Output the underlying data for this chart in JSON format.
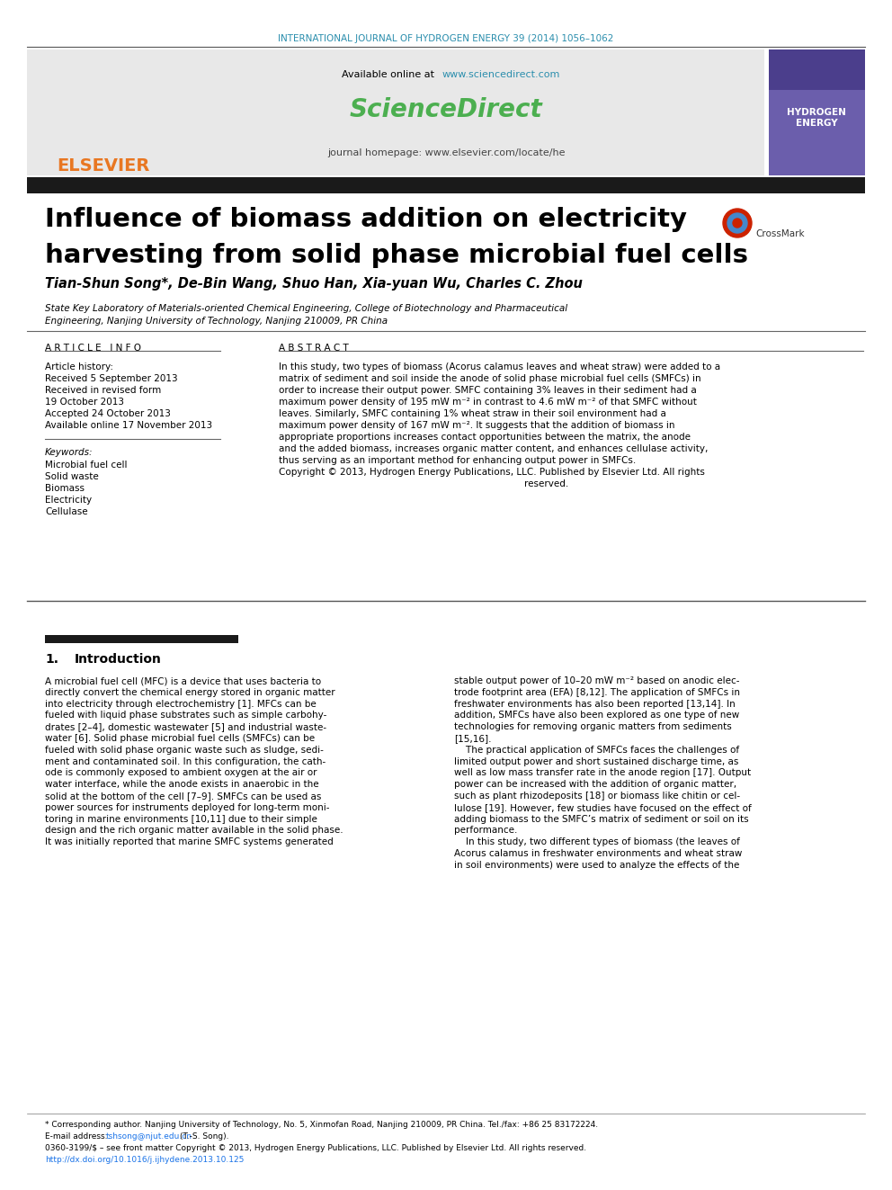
{
  "journal_header": "INTERNATIONAL JOURNAL OF HYDROGEN ENERGY 39 (2014) 1056–1062",
  "available_online": "Available online at",
  "sciencedirect_url": "www.sciencedirect.com",
  "journal_homepage": "journal homepage: www.elsevier.com/locate/he",
  "paper_title_line1": "Influence of biomass addition on electricity",
  "paper_title_line2": "harvesting from solid phase microbial fuel cells",
  "authors": "Tian-Shun Song*, De-Bin Wang, Shuo Han, Xia-yuan Wu, Charles C. Zhou",
  "affiliation_line1": "State Key Laboratory of Materials-oriented Chemical Engineering, College of Biotechnology and Pharmaceutical",
  "affiliation_line2": "Engineering, Nanjing University of Technology, Nanjing 210009, PR China",
  "article_info_header": "A R T I C L E   I N F O",
  "abstract_header": "A B S T R A C T",
  "article_history_label": "Article history:",
  "received1": "Received 5 September 2013",
  "received2": "Received in revised form",
  "received3": "19 October 2013",
  "accepted": "Accepted 24 October 2013",
  "available": "Available online 17 November 2013",
  "keywords_label": "Keywords:",
  "keywords": [
    "Microbial fuel cell",
    "Solid waste",
    "Biomass",
    "Electricity",
    "Cellulase"
  ],
  "abstract_lines": [
    "In this study, two types of biomass (Acorus calamus leaves and wheat straw) were added to a",
    "matrix of sediment and soil inside the anode of solid phase microbial fuel cells (SMFCs) in",
    "order to increase their output power. SMFC containing 3% leaves in their sediment had a",
    "maximum power density of 195 mW m⁻² in contrast to 4.6 mW m⁻² of that SMFC without",
    "leaves. Similarly, SMFC containing 1% wheat straw in their soil environment had a",
    "maximum power density of 167 mW m⁻². It suggests that the addition of biomass in",
    "appropriate proportions increases contact opportunities between the matrix, the anode",
    "and the added biomass, increases organic matter content, and enhances cellulase activity,",
    "thus serving as an important method for enhancing output power in SMFCs.",
    "Copyright © 2013, Hydrogen Energy Publications, LLC. Published by Elsevier Ltd. All rights",
    "                                                                                    reserved."
  ],
  "section1_num": "1.",
  "section1_title": "Introduction",
  "intro_left_lines": [
    "A microbial fuel cell (MFC) is a device that uses bacteria to",
    "directly convert the chemical energy stored in organic matter",
    "into electricity through electrochemistry [1]. MFCs can be",
    "fueled with liquid phase substrates such as simple carbohy-",
    "drates [2–4], domestic wastewater [5] and industrial waste-",
    "water [6]. Solid phase microbial fuel cells (SMFCs) can be",
    "fueled with solid phase organic waste such as sludge, sedi-",
    "ment and contaminated soil. In this configuration, the cath-",
    "ode is commonly exposed to ambient oxygen at the air or",
    "water interface, while the anode exists in anaerobic in the",
    "solid at the bottom of the cell [7–9]. SMFCs can be used as",
    "power sources for instruments deployed for long-term moni-",
    "toring in marine environments [10,11] due to their simple",
    "design and the rich organic matter available in the solid phase.",
    "It was initially reported that marine SMFC systems generated"
  ],
  "intro_right_lines": [
    "stable output power of 10–20 mW m⁻² based on anodic elec-",
    "trode footprint area (EFA) [8,12]. The application of SMFCs in",
    "freshwater environments has also been reported [13,14]. In",
    "addition, SMFCs have also been explored as one type of new",
    "technologies for removing organic matters from sediments",
    "[15,16].",
    "    The practical application of SMFCs faces the challenges of",
    "limited output power and short sustained discharge time, as",
    "well as low mass transfer rate in the anode region [17]. Output",
    "power can be increased with the addition of organic matter,",
    "such as plant rhizodeposits [18] or biomass like chitin or cel-",
    "lulose [19]. However, few studies have focused on the effect of",
    "adding biomass to the SMFC’s matrix of sediment or soil on its",
    "performance.",
    "    In this study, two different types of biomass (the leaves of",
    "Acorus calamus in freshwater environments and wheat straw",
    "in soil environments) were used to analyze the effects of the"
  ],
  "footer_line1": "* Corresponding author. Nanjing University of Technology, No. 5, Xinmofan Road, Nanjing 210009, PR China. Tel./fax: +86 25 83172224.",
  "footer_email_label": "E-mail address:",
  "footer_email": "tshsong@njut.edu.cn",
  "footer_email2": "(T.-S. Song).",
  "footer_issn": "0360-3199/$ – see front matter Copyright © 2013, Hydrogen Energy Publications, LLC. Published by Elsevier Ltd. All rights reserved.",
  "footer_doi": "http://dx.doi.org/10.1016/j.ijhydene.2013.10.125",
  "color_journal_header": "#2B8EAD",
  "color_sciencedirect_link": "#2B8EAD",
  "color_sciencedirect_logo": "#4CAF50",
  "color_elsevier": "#E87722",
  "color_title_bar": "#1A1A1A",
  "color_section_bar": "#1A1A1A",
  "color_footer_link": "#1A73E8",
  "bg_header_box": "#E8E8E8"
}
